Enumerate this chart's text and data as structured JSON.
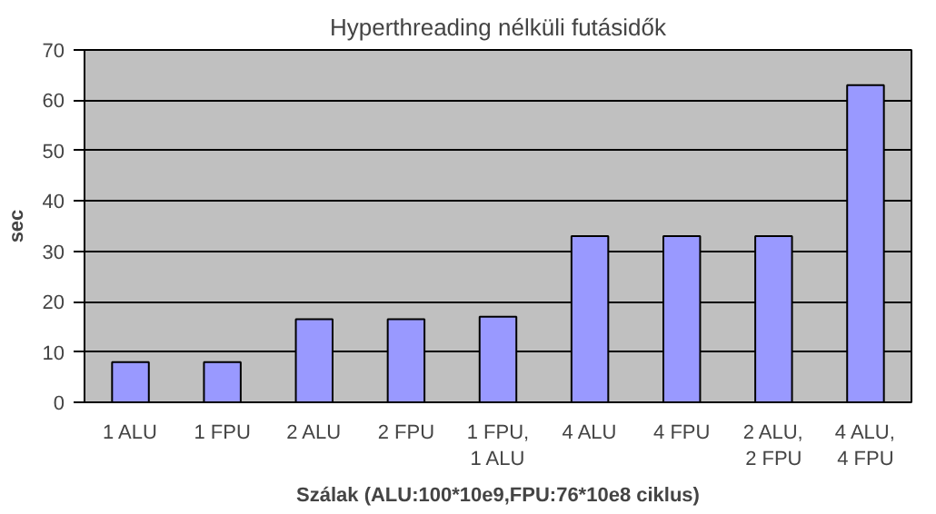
{
  "chart_data": {
    "type": "bar",
    "title": "Hyperthreading nélküli futásidők",
    "xlabel": "Szálak (ALU:100*10e9,FPU:76*10e8 ciklus)",
    "ylabel": "sec",
    "categories": [
      "1 ALU",
      "1 FPU",
      "2 ALU",
      "2 FPU",
      "1 FPU,\n1 ALU",
      "4 ALU",
      "4 FPU",
      "2 ALU,\n2 FPU",
      "4 ALU,\n4 FPU"
    ],
    "values": [
      8,
      8,
      16.5,
      16.5,
      17,
      33,
      33,
      33,
      63
    ],
    "color": "#9999ff",
    "ylim": [
      0,
      70
    ],
    "yticks": [
      0,
      10,
      20,
      30,
      40,
      50,
      60,
      70
    ],
    "grid": "y"
  }
}
